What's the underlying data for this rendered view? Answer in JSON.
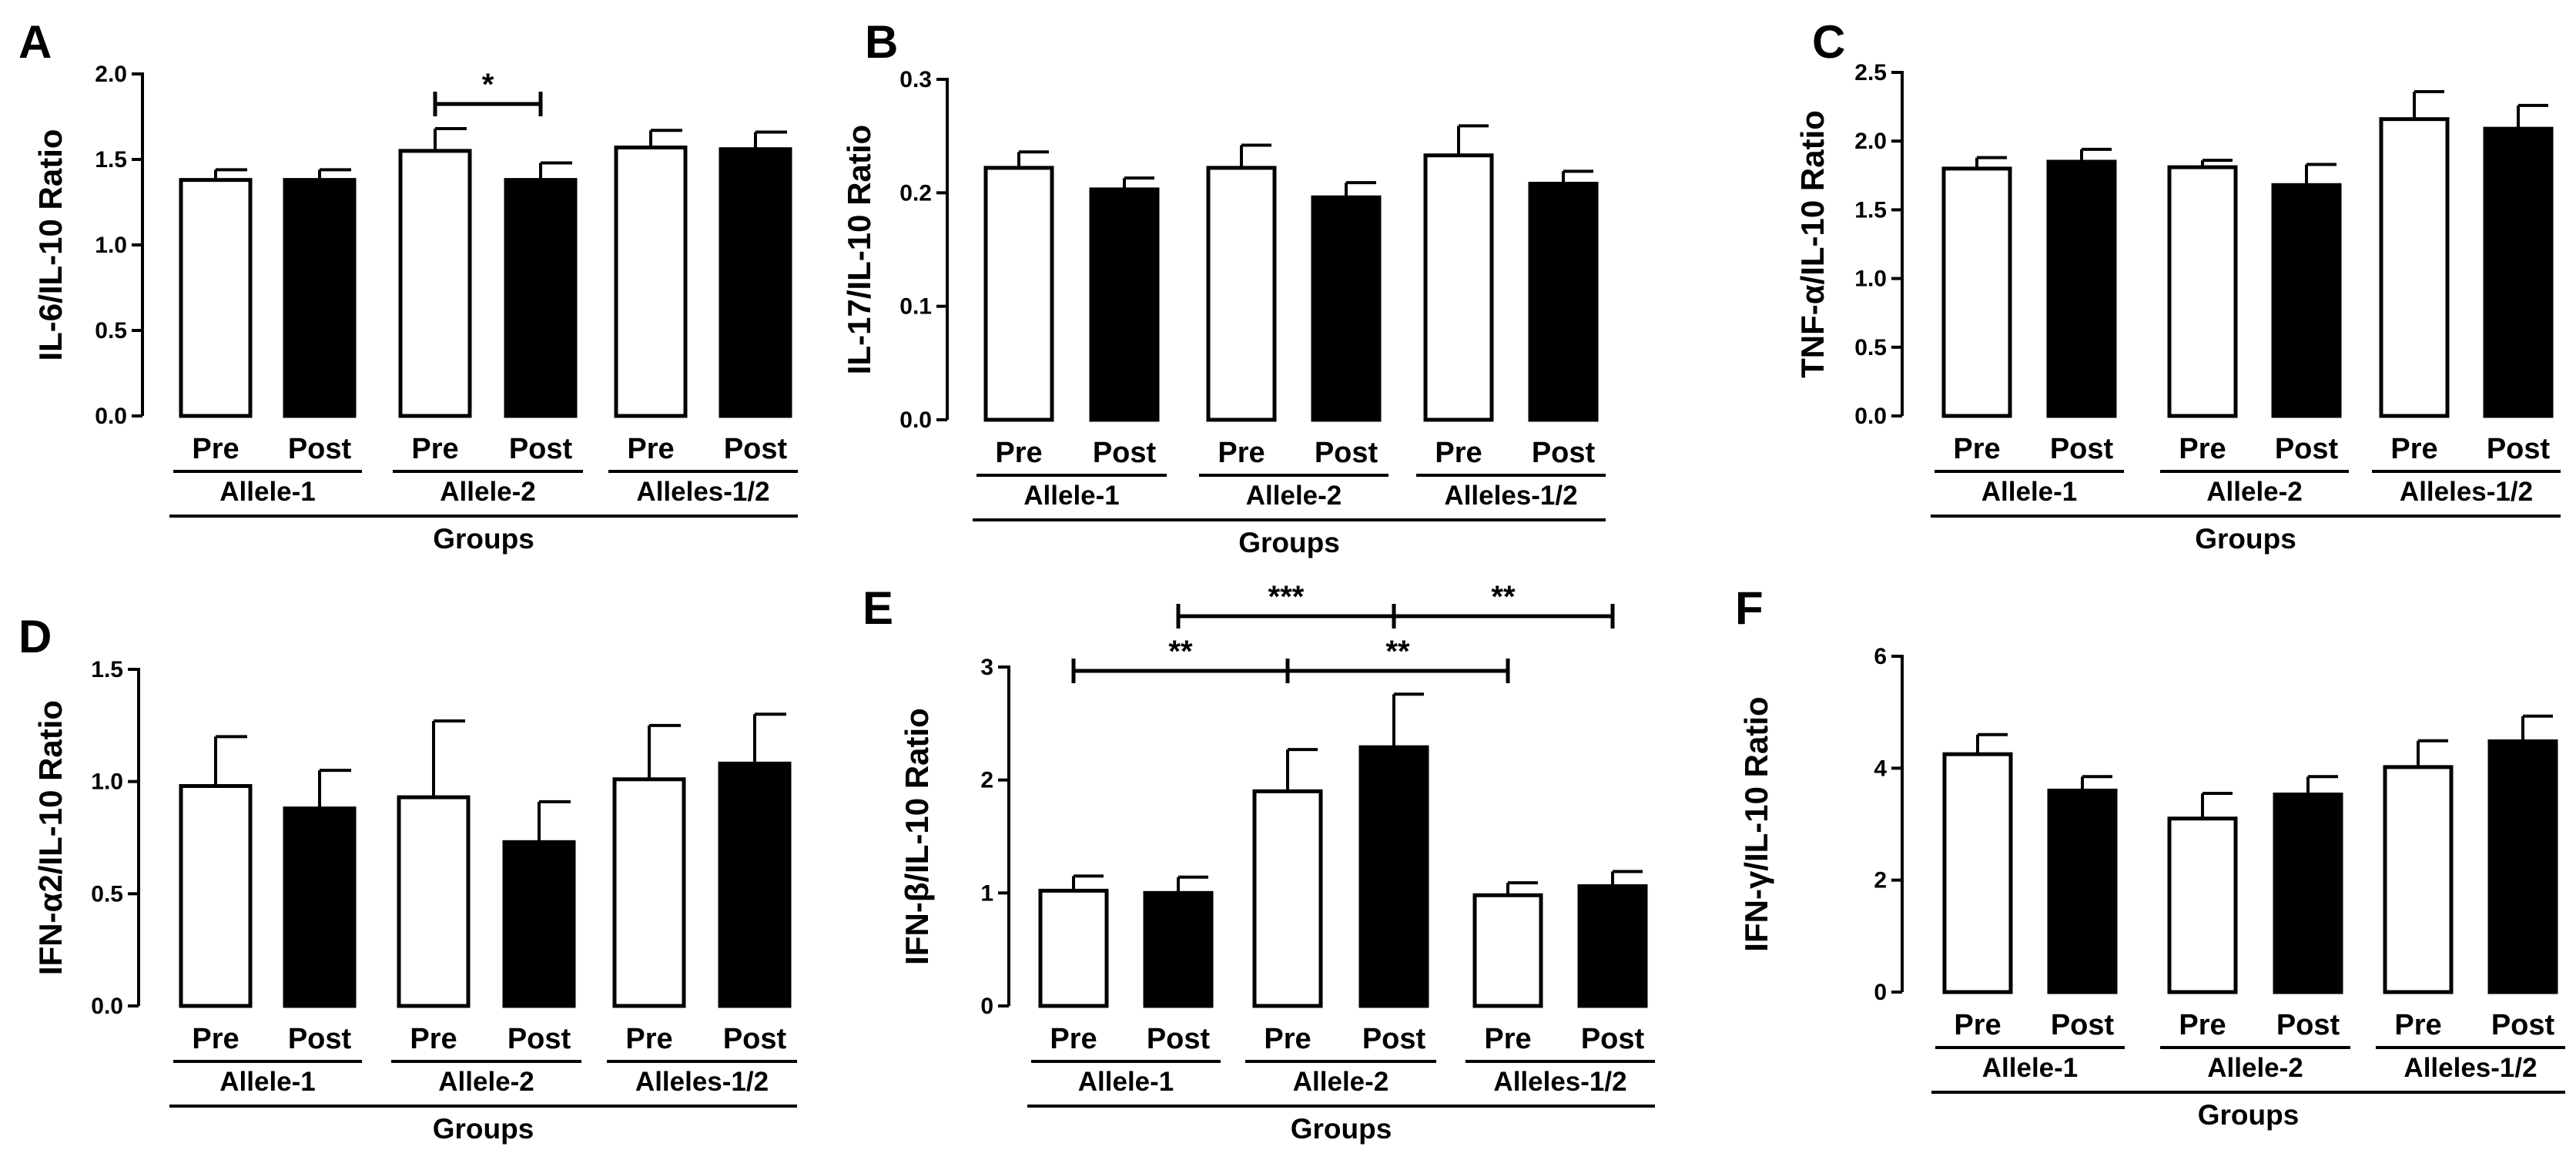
{
  "chart_data": [
    {
      "panel": "A",
      "type": "bar",
      "ylabel": "IL-6/IL-10 Ratio",
      "xlabel": "Groups",
      "ylim": [
        0,
        2.0
      ],
      "yticks": [
        "0.0",
        "0.5",
        "1.0",
        "1.5",
        "2.0"
      ],
      "categories": [
        "Pre",
        "Post",
        "Pre",
        "Post",
        "Pre",
        "Post"
      ],
      "groups": [
        "Allele-1",
        "Allele-2",
        "Alleles-1/2"
      ],
      "values": [
        1.38,
        1.38,
        1.55,
        1.38,
        1.57,
        1.56
      ],
      "errors": [
        0.06,
        0.06,
        0.13,
        0.1,
        0.1,
        0.1
      ],
      "fills": [
        "#ffffff",
        "#000000",
        "#ffffff",
        "#000000",
        "#ffffff",
        "#000000"
      ],
      "significance": [
        {
          "from": 2,
          "to": 3,
          "label": "*"
        }
      ]
    },
    {
      "panel": "B",
      "type": "bar",
      "ylabel": "IL-17/IL-10 Ratio",
      "xlabel": "Groups",
      "ylim": [
        0,
        0.3
      ],
      "yticks": [
        "0.0",
        "0.1",
        "0.2",
        "0.3"
      ],
      "categories": [
        "Pre",
        "Post",
        "Pre",
        "Post",
        "Pre",
        "Post"
      ],
      "groups": [
        "Allele-1",
        "Allele-2",
        "Alleles-1/2"
      ],
      "values": [
        0.222,
        0.203,
        0.222,
        0.196,
        0.233,
        0.208
      ],
      "errors": [
        0.014,
        0.01,
        0.02,
        0.013,
        0.026,
        0.011
      ],
      "fills": [
        "#ffffff",
        "#000000",
        "#ffffff",
        "#000000",
        "#ffffff",
        "#000000"
      ],
      "significance": []
    },
    {
      "panel": "C",
      "type": "bar",
      "ylabel": "TNF-α/IL-10 Ratio",
      "xlabel": "Groups",
      "ylim": [
        0,
        2.5
      ],
      "yticks": [
        "0.0",
        "0.5",
        "1.0",
        "1.5",
        "2.0",
        "2.5"
      ],
      "categories": [
        "Pre",
        "Post",
        "Pre",
        "Post",
        "Pre",
        "Post"
      ],
      "groups": [
        "Allele-1",
        "Allele-2",
        "Alleles-1/2"
      ],
      "values": [
        1.8,
        1.85,
        1.81,
        1.68,
        2.16,
        2.09
      ],
      "errors": [
        0.08,
        0.09,
        0.05,
        0.15,
        0.2,
        0.17
      ],
      "fills": [
        "#ffffff",
        "#000000",
        "#ffffff",
        "#000000",
        "#ffffff",
        "#000000"
      ],
      "significance": []
    },
    {
      "panel": "D",
      "type": "bar",
      "ylabel": "IFN-α2/IL-10 Ratio",
      "xlabel": "Groups",
      "ylim": [
        0,
        1.5
      ],
      "yticks": [
        "0.0",
        "0.5",
        "1.0",
        "1.5"
      ],
      "categories": [
        "Pre",
        "Post",
        "Pre",
        "Post",
        "Pre",
        "Post"
      ],
      "groups": [
        "Allele-1",
        "Allele-2",
        "Alleles-1/2"
      ],
      "values": [
        0.98,
        0.88,
        0.93,
        0.73,
        1.01,
        1.08
      ],
      "errors": [
        0.22,
        0.17,
        0.34,
        0.18,
        0.24,
        0.22
      ],
      "fills": [
        "#ffffff",
        "#000000",
        "#ffffff",
        "#000000",
        "#ffffff",
        "#000000"
      ],
      "significance": []
    },
    {
      "panel": "E",
      "type": "bar",
      "ylabel": "IFN-β/IL-10 Ratio",
      "xlabel": "Groups",
      "ylim": [
        0,
        3
      ],
      "yticks": [
        "0",
        "1",
        "2",
        "3"
      ],
      "categories": [
        "Pre",
        "Post",
        "Pre",
        "Post",
        "Pre",
        "Post"
      ],
      "groups": [
        "Allele-1",
        "Allele-2",
        "Alleles-1/2"
      ],
      "values": [
        1.02,
        1.0,
        1.9,
        2.29,
        0.98,
        1.06
      ],
      "errors": [
        0.13,
        0.14,
        0.37,
        0.47,
        0.11,
        0.13
      ],
      "fills": [
        "#ffffff",
        "#000000",
        "#ffffff",
        "#000000",
        "#ffffff",
        "#000000"
      ],
      "significance": [
        {
          "from": 0,
          "to": 2,
          "label": "**",
          "level": 1
        },
        {
          "from": 2,
          "to": 4,
          "label": "**",
          "level": 1
        },
        {
          "from": 1,
          "to": 3,
          "label": "***",
          "level": 2
        },
        {
          "from": 3,
          "to": 5,
          "label": "**",
          "level": 2
        }
      ]
    },
    {
      "panel": "F",
      "type": "bar",
      "ylabel": "IFN-γ/IL-10 Ratio",
      "xlabel": "Groups",
      "ylim": [
        0,
        6
      ],
      "yticks": [
        "0",
        "2",
        "4",
        "6"
      ],
      "categories": [
        "Pre",
        "Post",
        "Pre",
        "Post",
        "Pre",
        "Post"
      ],
      "groups": [
        "Allele-1",
        "Allele-2",
        "Alleles-1/2"
      ],
      "values": [
        4.25,
        3.6,
        3.1,
        3.53,
        4.02,
        4.48
      ],
      "errors": [
        0.35,
        0.25,
        0.45,
        0.32,
        0.47,
        0.45
      ],
      "fills": [
        "#ffffff",
        "#000000",
        "#ffffff",
        "#000000",
        "#ffffff",
        "#000000"
      ],
      "significance": []
    }
  ]
}
